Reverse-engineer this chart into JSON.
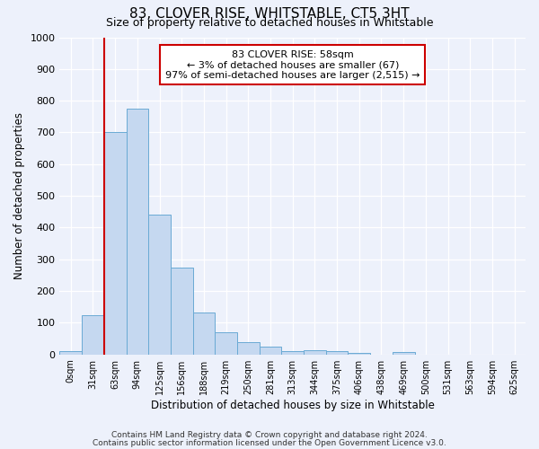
{
  "title1": "83, CLOVER RISE, WHITSTABLE, CT5 3HT",
  "title2": "Size of property relative to detached houses in Whitstable",
  "xlabel": "Distribution of detached houses by size in Whitstable",
  "ylabel": "Number of detached properties",
  "bar_labels": [
    "0sqm",
    "31sqm",
    "63sqm",
    "94sqm",
    "125sqm",
    "156sqm",
    "188sqm",
    "219sqm",
    "250sqm",
    "281sqm",
    "313sqm",
    "344sqm",
    "375sqm",
    "406sqm",
    "438sqm",
    "469sqm",
    "500sqm",
    "531sqm",
    "563sqm",
    "594sqm",
    "625sqm"
  ],
  "bar_values": [
    10,
    125,
    700,
    775,
    440,
    275,
    133,
    70,
    38,
    25,
    10,
    12,
    10,
    4,
    0,
    8,
    0,
    0,
    0,
    0,
    0
  ],
  "bar_color": "#c5d8f0",
  "bar_edge_color": "#6aaad4",
  "bg_color": "#edf1fb",
  "grid_color": "#ffffff",
  "red_line_index": 2,
  "annotation_text": "83 CLOVER RISE: 58sqm\n← 3% of detached houses are smaller (67)\n97% of semi-detached houses are larger (2,515) →",
  "annotation_box_color": "#ffffff",
  "annotation_box_edge": "#cc0000",
  "ylim": [
    0,
    1000
  ],
  "footnote1": "Contains HM Land Registry data © Crown copyright and database right 2024.",
  "footnote2": "Contains public sector information licensed under the Open Government Licence v3.0."
}
